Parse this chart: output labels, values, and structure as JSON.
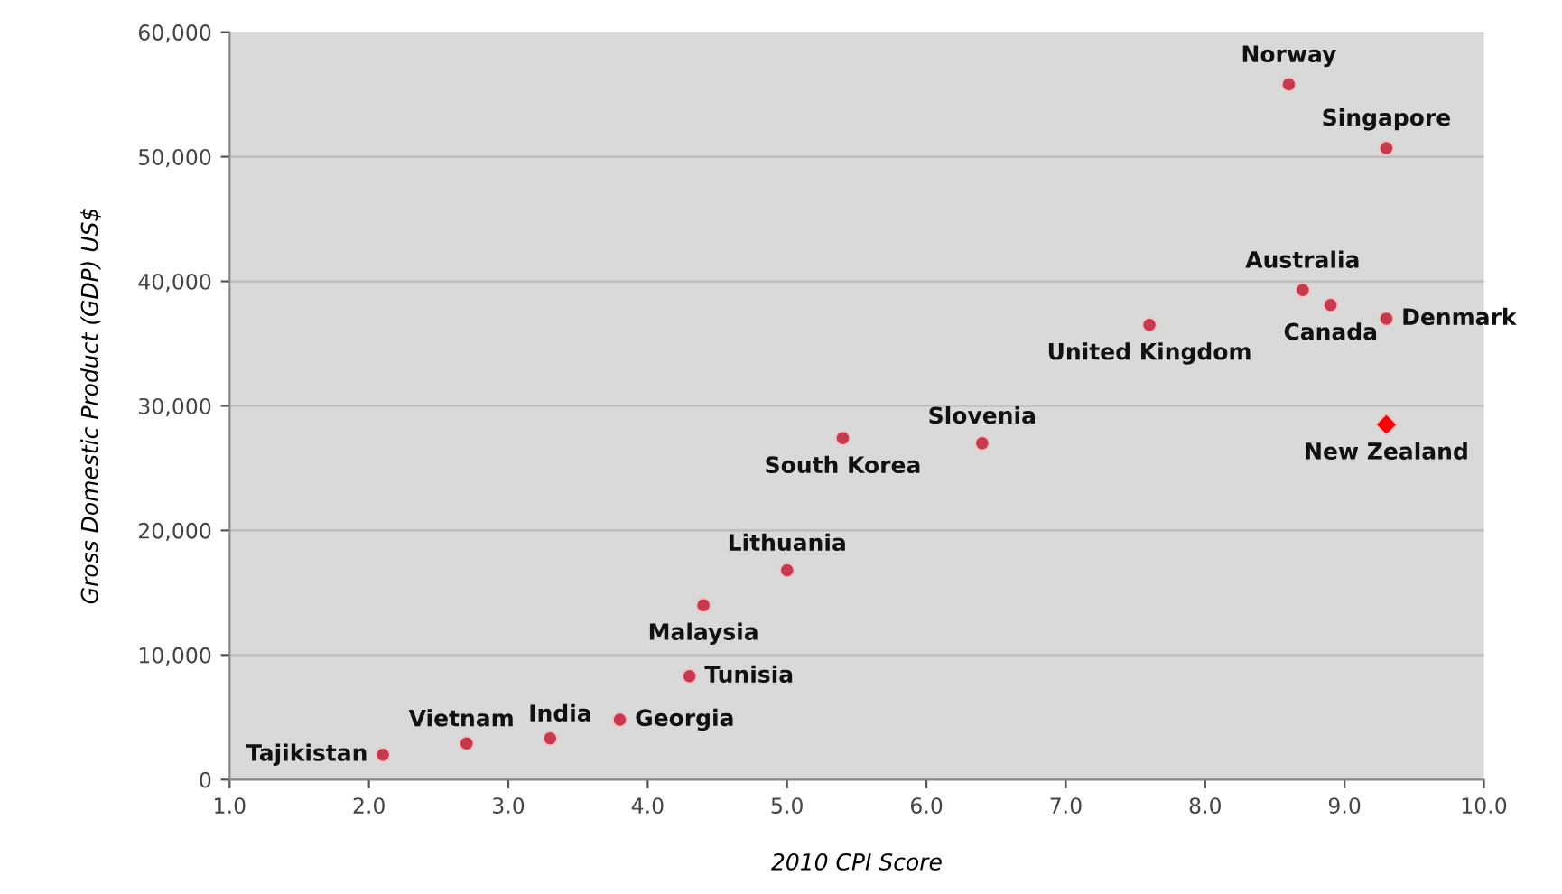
{
  "chart_data": {
    "type": "scatter",
    "xlabel": "2010 CPI Score",
    "ylabel": "Gross Domestic Product (GDP) US$",
    "xlim": [
      1.0,
      10.0
    ],
    "xticks": [
      {
        "value": 1,
        "label": "1.0"
      },
      {
        "value": 2,
        "label": "2.0"
      },
      {
        "value": 3,
        "label": "3.0"
      },
      {
        "value": 4,
        "label": "4.0"
      },
      {
        "value": 5,
        "label": "5.0"
      },
      {
        "value": 6,
        "label": "6.0"
      },
      {
        "value": 7,
        "label": "7.0"
      },
      {
        "value": 8,
        "label": "8.0"
      },
      {
        "value": 9,
        "label": "9.0"
      },
      {
        "value": 10,
        "label": "10.0"
      }
    ],
    "ylim": [
      0,
      60000
    ],
    "yticks": [
      0,
      {
        "value": 10000,
        "label": "10,000"
      },
      {
        "value": 20000,
        "label": "20,000"
      },
      {
        "value": 30000,
        "label": "30,000"
      },
      {
        "value": 40000,
        "label": "40,000"
      },
      {
        "value": 50000,
        "label": "50,000"
      },
      {
        "value": 60000,
        "label": "60,000"
      }
    ],
    "grid": "y",
    "legend": false,
    "series": [
      {
        "color": "#c8384e",
        "marker": "circle",
        "x": [
          2.1,
          2.7,
          3.3,
          3.8,
          4.3,
          4.4,
          5.0,
          5.4,
          6.4,
          7.6,
          8.6,
          8.7,
          8.9,
          9.3,
          9.3
        ],
        "values": [
          2000,
          2900,
          3300,
          4800,
          8300,
          14000,
          16800,
          27400,
          27000,
          36500,
          55800,
          39300,
          38100,
          37000,
          50700
        ]
      },
      {
        "color": "#ff0000",
        "marker": "diamond",
        "x": [
          9.3
        ],
        "values": [
          28500
        ]
      }
    ],
    "annotations": [
      {
        "text": "Tajikistan",
        "x": 2.1,
        "y": 2000
      },
      {
        "text": "Vietnam",
        "x": 2.7,
        "y": 2900
      },
      {
        "text": "India",
        "x": 3.3,
        "y": 3300
      },
      {
        "text": "Georgia",
        "x": 3.8,
        "y": 4800
      },
      {
        "text": "Tunisia",
        "x": 4.3,
        "y": 8300
      },
      {
        "text": "Malaysia",
        "x": 4.4,
        "y": 14000
      },
      {
        "text": "Lithuania",
        "x": 5.0,
        "y": 16800
      },
      {
        "text": "South Korea",
        "x": 5.4,
        "y": 27400
      },
      {
        "text": "Slovenia",
        "x": 6.4,
        "y": 27000
      },
      {
        "text": "United Kingdom",
        "x": 7.6,
        "y": 36500
      },
      {
        "text": "Norway",
        "x": 8.6,
        "y": 55800
      },
      {
        "text": "Australia",
        "x": 8.7,
        "y": 39300
      },
      {
        "text": "Canada",
        "x": 8.9,
        "y": 38100
      },
      {
        "text": "Denmark",
        "x": 9.3,
        "y": 37000
      },
      {
        "text": "Singapore",
        "x": 9.3,
        "y": 50700
      },
      {
        "text": "New Zealand",
        "x": 9.3,
        "y": 28500
      }
    ]
  }
}
